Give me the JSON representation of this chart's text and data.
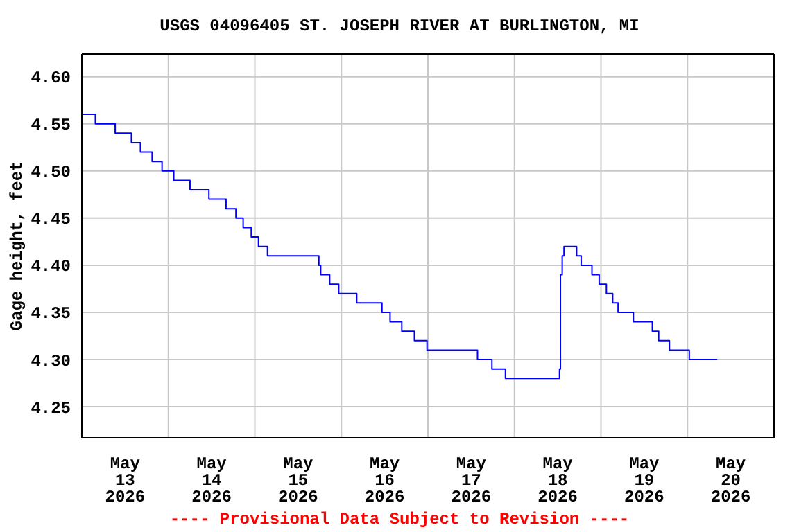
{
  "chart_data": {
    "type": "step",
    "title": "USGS 04096405 ST. JOSEPH RIVER AT BURLINGTON, MI",
    "ylabel": "Gage height, feet",
    "annotations": [
      "---- Provisional Data Subject to Revision ----"
    ],
    "x": [
      "2026-05-13T00:00",
      "2026-05-13T03:45",
      "2026-05-13T09:15",
      "2026-05-13T13:45",
      "2026-05-13T16:15",
      "2026-05-13T19:30",
      "2026-05-13T22:15",
      "2026-05-14T01:30",
      "2026-05-14T06:00",
      "2026-05-14T11:15",
      "2026-05-14T16:00",
      "2026-05-14T18:45",
      "2026-05-14T20:45",
      "2026-05-14T23:00",
      "2026-05-15T01:00",
      "2026-05-15T03:30",
      "2026-05-15T17:45",
      "2026-05-15T18:15",
      "2026-05-15T20:45",
      "2026-05-15T23:15",
      "2026-05-16T04:15",
      "2026-05-16T11:15",
      "2026-05-16T13:30",
      "2026-05-16T16:45",
      "2026-05-16T20:15",
      "2026-05-16T23:45",
      "2026-05-17T13:45",
      "2026-05-17T17:45",
      "2026-05-17T21:30",
      "2026-05-18T12:30",
      "2026-05-18T12:45",
      "2026-05-18T13:15",
      "2026-05-18T13:45",
      "2026-05-18T17:15",
      "2026-05-18T18:30",
      "2026-05-18T21:30",
      "2026-05-18T23:30",
      "2026-05-19T01:30",
      "2026-05-19T03:15",
      "2026-05-19T04:45",
      "2026-05-19T09:00",
      "2026-05-19T14:15",
      "2026-05-19T16:00",
      "2026-05-19T19:00",
      "2026-05-20T00:30",
      "2026-05-20T08:15"
    ],
    "series": [
      {
        "color": "#0000ff",
        "values": [
          4.56,
          4.55,
          4.54,
          4.53,
          4.52,
          4.51,
          4.5,
          4.49,
          4.48,
          4.47,
          4.46,
          4.45,
          4.44,
          4.43,
          4.42,
          4.41,
          4.4,
          4.39,
          4.38,
          4.37,
          4.36,
          4.35,
          4.34,
          4.33,
          4.32,
          4.31,
          4.3,
          4.29,
          4.28,
          4.29,
          4.39,
          4.41,
          4.42,
          4.41,
          4.4,
          4.39,
          4.38,
          4.37,
          4.36,
          4.35,
          4.34,
          4.33,
          4.32,
          4.31,
          4.3,
          4.3
        ]
      }
    ],
    "xlim": [
      "2026-05-13T00:00",
      "2026-05-21T00:00"
    ],
    "xticks": [
      {
        "value": "2026-05-13T00:00",
        "label": null
      },
      {
        "value": "2026-05-13T12:00",
        "label": "May\n13\n2026"
      },
      {
        "value": "2026-05-14T00:00",
        "label": null
      },
      {
        "value": "2026-05-14T12:00",
        "label": "May\n14\n2026"
      },
      {
        "value": "2026-05-15T00:00",
        "label": null
      },
      {
        "value": "2026-05-15T12:00",
        "label": "May\n15\n2026"
      },
      {
        "value": "2026-05-16T00:00",
        "label": null
      },
      {
        "value": "2026-05-16T12:00",
        "label": "May\n16\n2026"
      },
      {
        "value": "2026-05-17T00:00",
        "label": null
      },
      {
        "value": "2026-05-17T12:00",
        "label": "May\n17\n2026"
      },
      {
        "value": "2026-05-18T00:00",
        "label": null
      },
      {
        "value": "2026-05-18T12:00",
        "label": "May\n18\n2026"
      },
      {
        "value": "2026-05-19T00:00",
        "label": null
      },
      {
        "value": "2026-05-19T12:00",
        "label": "May\n19\n2026"
      },
      {
        "value": "2026-05-20T00:00",
        "label": null
      },
      {
        "value": "2026-05-20T12:00",
        "label": "May\n20\n2026"
      },
      {
        "value": "2026-05-21T00:00",
        "label": null
      }
    ],
    "ylim": [
      4.217,
      4.624
    ],
    "yticks": [
      {
        "value": 4.25,
        "label": "4.25"
      },
      {
        "value": 4.3,
        "label": "4.30"
      },
      {
        "value": 4.35,
        "label": "4.35"
      },
      {
        "value": 4.4,
        "label": "4.40"
      },
      {
        "value": 4.45,
        "label": "4.45"
      },
      {
        "value": 4.5,
        "label": "4.50"
      },
      {
        "value": 4.55,
        "label": "4.55"
      },
      {
        "value": 4.6,
        "label": "4.60"
      }
    ],
    "grid": true,
    "marker": "none",
    "legend": false
  }
}
